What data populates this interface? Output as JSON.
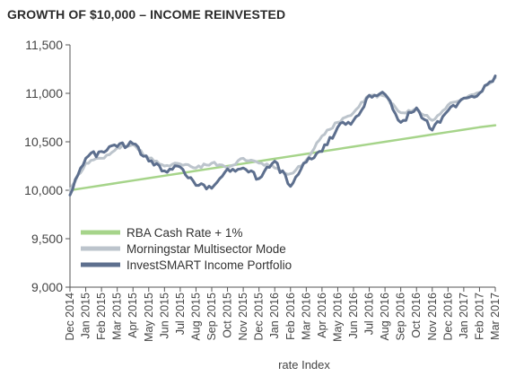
{
  "chart_data": {
    "type": "line",
    "title": "GROWTH OF $10,000 – INCOME REINVESTED",
    "xlabel": "rate Index",
    "ylabel": "",
    "ylim": [
      9000,
      11500
    ],
    "yticks": [
      9000,
      9500,
      10000,
      10500,
      11000,
      11500
    ],
    "ytick_labels": [
      "9,000",
      "9,500",
      "10,000",
      "10,500",
      "11,000",
      "11,500"
    ],
    "categories": [
      "Dec 2014",
      "Jan 2015",
      "Feb 2015",
      "Mar 2015",
      "Apr 2015",
      "May 2015",
      "Jun 2015",
      "Jul 2015",
      "Aug 2015",
      "Sep 2015",
      "Oct 2015",
      "Nov 2015",
      "Dec 2015",
      "Jan 2016",
      "Feb 2016",
      "Mar 2016",
      "Apr 2016",
      "May 2016",
      "Jun 2016",
      "Jul 2016",
      "Aug 2016",
      "Sep 2016",
      "Oct 2016",
      "Nov 2016",
      "Dec 2016",
      "Jan 2017",
      "Feb 2017",
      "Mar 2017"
    ],
    "grid": false,
    "legend_position": "bottom-left",
    "series": [
      {
        "name": "RBA Cash Rate + 1%",
        "color": "#a6d48a",
        "values": [
          10000,
          10025,
          10050,
          10075,
          10100,
          10125,
          10150,
          10175,
          10200,
          10225,
          10250,
          10275,
          10300,
          10325,
          10350,
          10375,
          10400,
          10425,
          10450,
          10475,
          10500,
          10525,
          10550,
          10575,
          10600,
          10625,
          10650,
          10670
        ]
      },
      {
        "name": "Morningstar Multisector Mode",
        "color": "#bcc4cc",
        "values": [
          10000,
          10280,
          10330,
          10440,
          10470,
          10330,
          10250,
          10270,
          10230,
          10280,
          10230,
          10330,
          10280,
          10230,
          10170,
          10310,
          10560,
          10700,
          10800,
          10980,
          10970,
          10800,
          10840,
          10720,
          10880,
          10950,
          11010,
          11160
        ]
      },
      {
        "name": "InvestSMART Income Portfolio",
        "color": "#5d6f8e",
        "values": [
          9950,
          10330,
          10400,
          10450,
          10480,
          10300,
          10200,
          10240,
          10050,
          10020,
          10220,
          10230,
          10120,
          10300,
          10040,
          10290,
          10400,
          10650,
          10720,
          10980,
          10990,
          10700,
          10850,
          10620,
          10820,
          10950,
          11000,
          11180
        ]
      }
    ]
  }
}
